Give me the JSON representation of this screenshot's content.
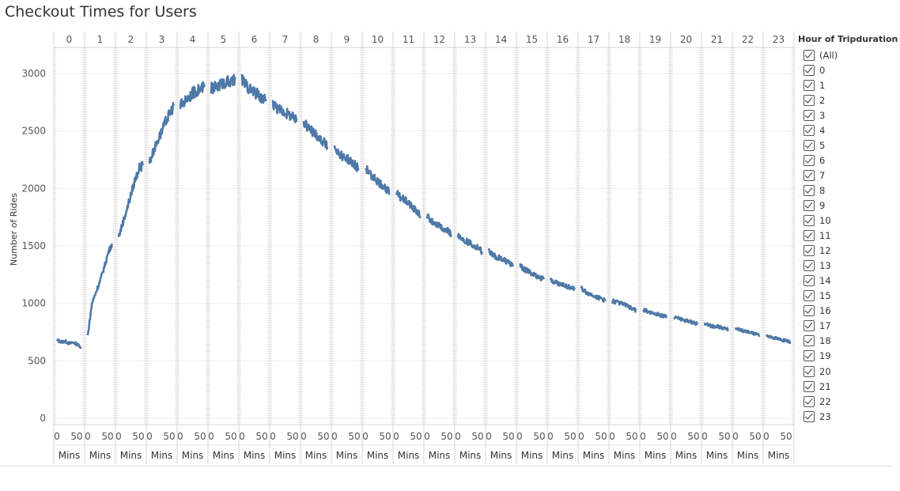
{
  "page": {
    "title": "Checkout Times for Users"
  },
  "legend": {
    "title": "Hour of Tripduration",
    "items": [
      "(All)",
      "0",
      "1",
      "2",
      "3",
      "4",
      "5",
      "6",
      "7",
      "8",
      "9",
      "10",
      "11",
      "12",
      "13",
      "14",
      "15",
      "16",
      "17",
      "18",
      "19",
      "20",
      "21",
      "22",
      "23"
    ]
  },
  "chart_data": {
    "type": "line",
    "title": "Checkout Times for Users",
    "ylabel": "Number of Rides",
    "x_unit_label": "Mins",
    "x_tick_labels": [
      "0",
      "50"
    ],
    "ylim": [
      0,
      3200
    ],
    "yticks": [
      0,
      500,
      1000,
      1500,
      2000,
      2500,
      3000
    ],
    "grid": true,
    "legend_position": "right",
    "line_color": "#4e79a7",
    "x": [
      "0:00",
      "0:10",
      "0:20",
      "0:30",
      "0:40",
      "0:50",
      "0:58",
      "1:00",
      "1:10",
      "1:20",
      "1:30",
      "1:40",
      "1:50",
      "1:58",
      "2:00",
      "2:10",
      "2:20",
      "2:30",
      "2:40",
      "2:50",
      "2:58",
      "3:00",
      "3:10",
      "3:20",
      "3:30",
      "3:40",
      "3:50",
      "3:58",
      "4:00",
      "4:10",
      "4:20",
      "4:30",
      "4:40",
      "4:50",
      "4:58",
      "5:00",
      "5:10",
      "5:20",
      "5:30",
      "5:40",
      "5:50",
      "5:58",
      "6:00",
      "6:10",
      "6:20",
      "6:30",
      "6:40",
      "6:50",
      "6:58",
      "7:00",
      "7:10",
      "7:20",
      "7:30",
      "7:40",
      "7:50",
      "7:58",
      "8:00",
      "8:10",
      "8:20",
      "8:30",
      "8:40",
      "8:50",
      "8:58",
      "9:00",
      "9:10",
      "9:20",
      "9:30",
      "9:40",
      "9:50",
      "9:58",
      "10:00",
      "10:10",
      "10:20",
      "10:30",
      "10:40",
      "10:50",
      "10:58",
      "11:00",
      "11:10",
      "11:20",
      "11:30",
      "11:40",
      "11:50",
      "11:58",
      "12:00",
      "12:10",
      "12:20",
      "12:30",
      "12:40",
      "12:50",
      "12:58",
      "13:00",
      "13:10",
      "13:20",
      "13:30",
      "13:40",
      "13:50",
      "13:58",
      "14:00",
      "14:10",
      "14:20",
      "14:30",
      "14:40",
      "14:50",
      "14:58",
      "15:00",
      "15:10",
      "15:20",
      "15:30",
      "15:40",
      "15:50",
      "15:58",
      "16:00",
      "16:10",
      "16:20",
      "16:30",
      "16:40",
      "16:50",
      "16:58",
      "17:00",
      "17:10",
      "17:20",
      "17:30",
      "17:40",
      "17:50",
      "17:58",
      "18:00",
      "18:10",
      "18:20",
      "18:30",
      "18:40",
      "18:50",
      "18:58",
      "19:00",
      "19:10",
      "19:20",
      "19:30",
      "19:40",
      "19:50",
      "19:58",
      "20:00",
      "20:10",
      "20:20",
      "20:30",
      "20:40",
      "20:50",
      "20:58",
      "21:00",
      "21:10",
      "21:20",
      "21:30",
      "21:40",
      "21:50",
      "21:58",
      "22:00",
      "22:10",
      "22:20",
      "22:30",
      "22:40",
      "22:50",
      "22:58",
      "23:00",
      "23:10",
      "23:20",
      "23:30",
      "23:40",
      "23:50",
      "23:58"
    ],
    "series": [
      {
        "values": [
          680,
          665,
          670,
          650,
          660,
          640,
          620,
          720,
          1000,
          1100,
          1200,
          1320,
          1450,
          1520,
          1580,
          1700,
          1820,
          1950,
          2080,
          2180,
          2200,
          2230,
          2330,
          2420,
          2500,
          2590,
          2660,
          2720,
          2720,
          2760,
          2800,
          2830,
          2850,
          2870,
          2880,
          2870,
          2880,
          2900,
          2920,
          2930,
          2920,
          2950,
          2950,
          2900,
          2860,
          2840,
          2810,
          2780,
          2760,
          2740,
          2700,
          2680,
          2660,
          2640,
          2610,
          2580,
          2570,
          2530,
          2500,
          2470,
          2430,
          2400,
          2350,
          2370,
          2310,
          2280,
          2260,
          2230,
          2200,
          2170,
          2180,
          2130,
          2100,
          2060,
          2030,
          2000,
          1960,
          1960,
          1920,
          1900,
          1870,
          1830,
          1800,
          1760,
          1760,
          1720,
          1700,
          1680,
          1650,
          1630,
          1600,
          1600,
          1560,
          1540,
          1520,
          1500,
          1480,
          1450,
          1460,
          1420,
          1400,
          1390,
          1370,
          1350,
          1320,
          1330,
          1300,
          1280,
          1260,
          1240,
          1220,
          1210,
          1200,
          1190,
          1170,
          1160,
          1150,
          1140,
          1120,
          1130,
          1100,
          1080,
          1070,
          1050,
          1040,
          1020,
          1020,
          1010,
          1000,
          990,
          970,
          950,
          940,
          950,
          930,
          920,
          910,
          900,
          890,
          880,
          880,
          870,
          860,
          850,
          840,
          830,
          820,
          820,
          810,
          800,
          800,
          790,
          780,
          770,
          780,
          770,
          760,
          750,
          740,
          730,
          720,
          720,
          710,
          700,
          690,
          680,
          670,
          660
        ]
      }
    ]
  }
}
